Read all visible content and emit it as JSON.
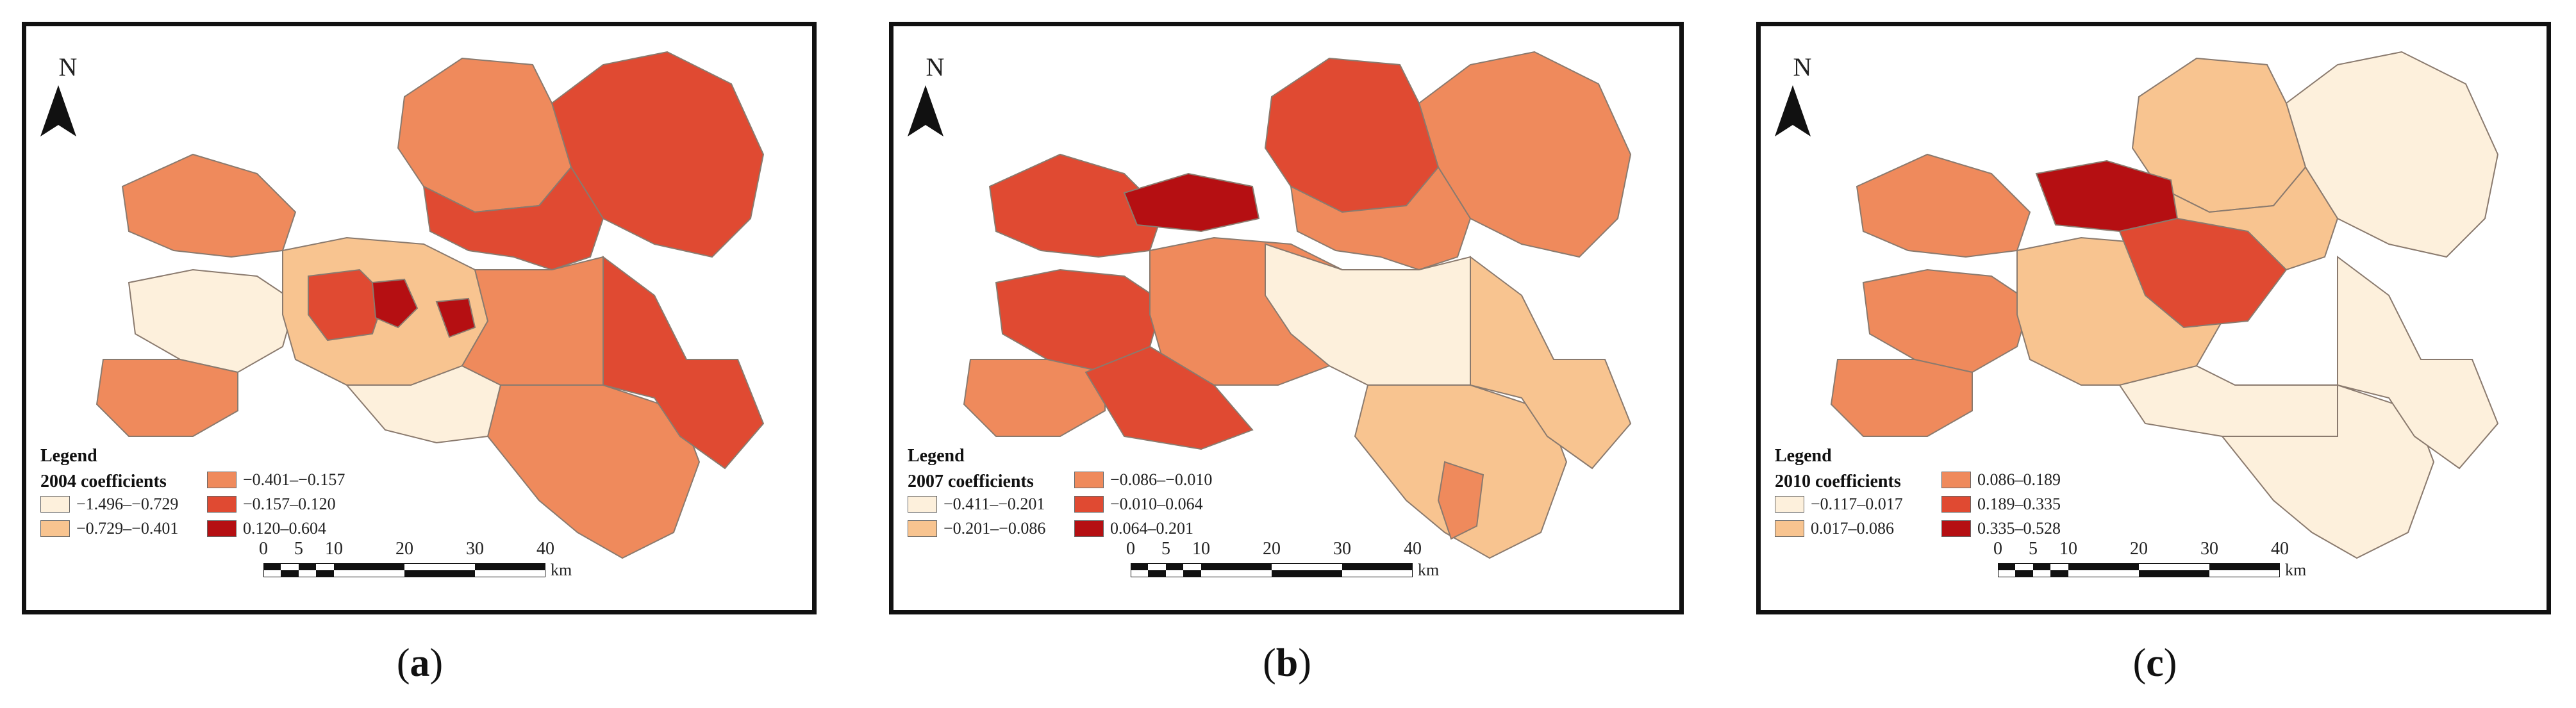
{
  "panels": [
    {
      "id": "a",
      "north_label": "N",
      "legend_title": "Legend",
      "legend_subtitle": "2004 coefficients",
      "legend_items": [
        {
          "label": "−1.496–−0.729",
          "color": "#fdf0dc"
        },
        {
          "label": "−0.729–−0.401",
          "color": "#f8c490"
        },
        {
          "label": "−0.401–−0.157",
          "color": "#ef8a5c"
        },
        {
          "label": "−0.157–0.120",
          "color": "#e04a32"
        },
        {
          "label": "0.120–0.604",
          "color": "#b50f12"
        }
      ],
      "caption": "a"
    },
    {
      "id": "b",
      "north_label": "N",
      "legend_title": "Legend",
      "legend_subtitle": "2007 coefficients",
      "legend_items": [
        {
          "label": "−0.411–−0.201",
          "color": "#fdf0dc"
        },
        {
          "label": "−0.201–−0.086",
          "color": "#f8c490"
        },
        {
          "label": "−0.086–−0.010",
          "color": "#ef8a5c"
        },
        {
          "label": "−0.010–0.064",
          "color": "#e04a32"
        },
        {
          "label": "0.064–0.201",
          "color": "#b50f12"
        }
      ],
      "caption": "b"
    },
    {
      "id": "c",
      "north_label": "N",
      "legend_title": "Legend",
      "legend_subtitle": "2010 coefficients",
      "legend_items": [
        {
          "label": "−0.117–0.017",
          "color": "#fdf0dc"
        },
        {
          "label": "0.017–0.086",
          "color": "#f8c490"
        },
        {
          "label": "0.086–0.189",
          "color": "#ef8a5c"
        },
        {
          "label": "0.189–0.335",
          "color": "#e04a32"
        },
        {
          "label": "0.335–0.528",
          "color": "#b50f12"
        }
      ],
      "caption": "c"
    }
  ],
  "scale_bar": {
    "ticks": [
      "0",
      "5",
      "10",
      "20",
      "30",
      "40"
    ],
    "unit": "km"
  },
  "boundary_color": "#8a7a6e"
}
